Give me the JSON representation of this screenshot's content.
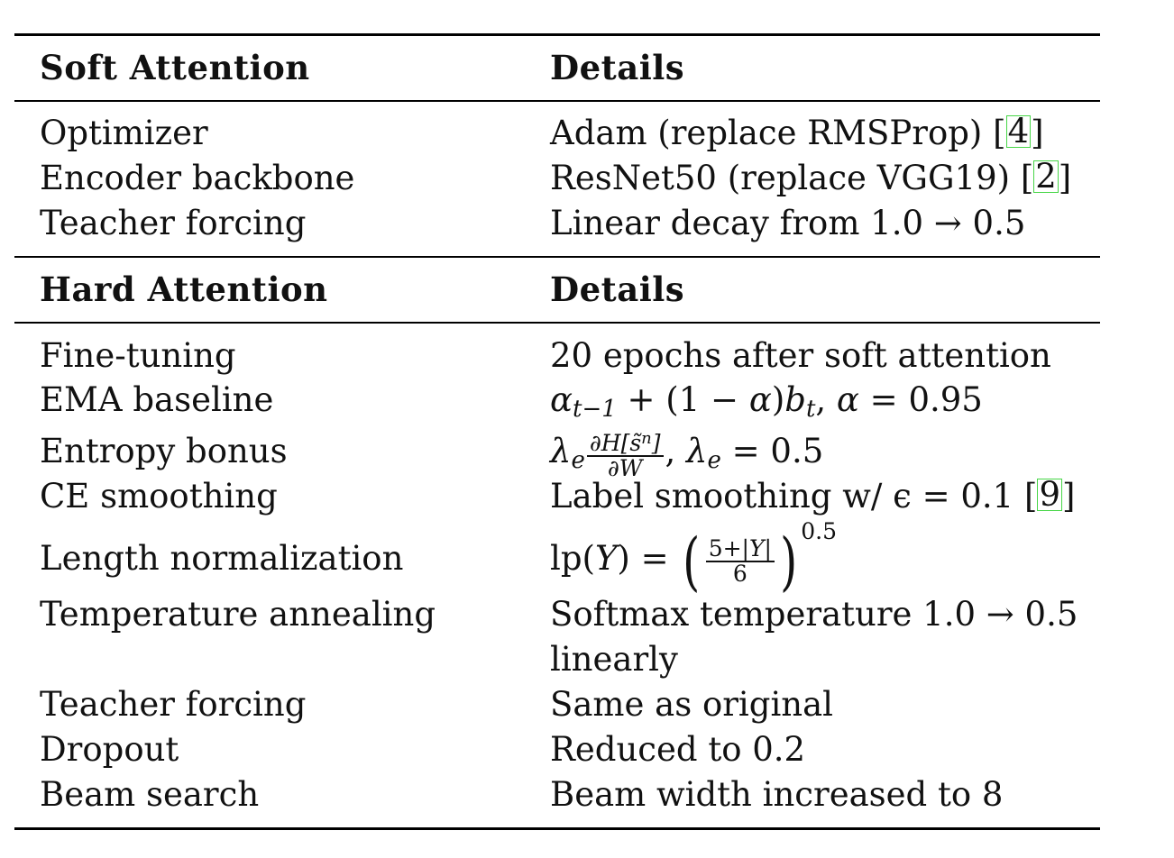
{
  "table": {
    "sections": [
      {
        "header": {
          "col1": "Soft Attention",
          "col2": "Details"
        },
        "rows": [
          {
            "label": "Optimizer",
            "detail_text": "Adam (replace RMSProp) ",
            "cite": "4"
          },
          {
            "label": "Encoder backbone",
            "detail_text": "ResNet50 (replace VGG19) ",
            "cite": "2"
          },
          {
            "label": "Teacher forcing",
            "detail_text": "Linear decay from 1.0 → 0.5"
          }
        ]
      },
      {
        "header": {
          "col1": "Hard Attention",
          "col2": "Details"
        },
        "rows": [
          {
            "label": "Fine-tuning",
            "detail_text": "20 epochs after soft attention"
          },
          {
            "label": "EMA baseline",
            "detail_formula": "α_{t−1} + (1 − α)b_t, α = 0.95"
          },
          {
            "label": "Entropy bonus",
            "detail_formula": "λ_e ∂H[s̃^n]/∂W, λ_e = 0.5"
          },
          {
            "label": "CE smoothing",
            "detail_text": "Label smoothing w/ ϵ = 0.1 ",
            "cite": "9"
          },
          {
            "label": "Length normalization",
            "detail_formula": "lp(Y) = ((5+|Y|)/6)^0.5"
          },
          {
            "label": "Temperature annealing",
            "detail_text": "Softmax temperature 1.0 → 0.5",
            "detail_text_line2": "linearly"
          },
          {
            "label": "Teacher forcing",
            "detail_text": "Same as original"
          },
          {
            "label": "Dropout",
            "detail_text": "Reduced to 0.2"
          },
          {
            "label": "Beam search",
            "detail_text": "Beam width increased to 8"
          }
        ]
      }
    ],
    "colors": {
      "citation_box": "#48d648",
      "rule": "#000000"
    }
  }
}
